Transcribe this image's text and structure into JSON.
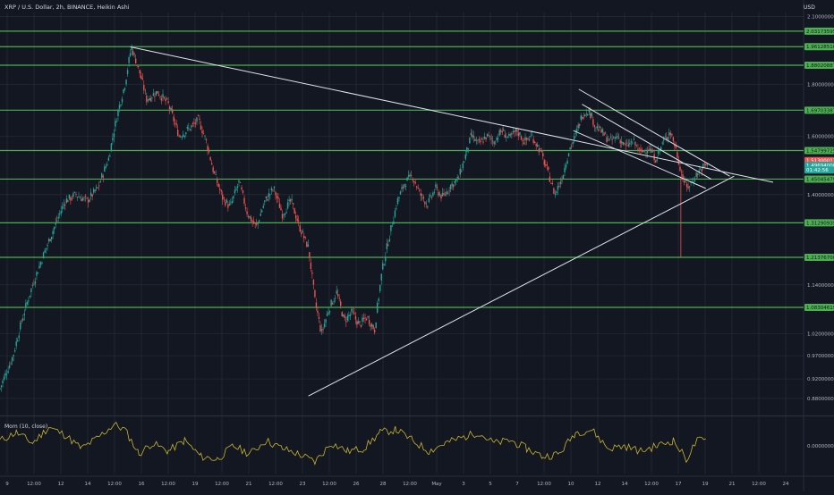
{
  "header": {
    "symbol_title": "XRP / U.S. Dollar, 2h, BINANCE, Heikin Ashi",
    "currency": "USD",
    "indicator_label": "Mom (10, close)"
  },
  "colors": {
    "background": "#131722",
    "grid": "#2a2e39",
    "up_candle": "#26a69a",
    "down_candle": "#ef5350",
    "level_line": "#4caf50",
    "trend_line": "#e0e3eb",
    "momentum_line": "#c9b531",
    "price_red": "#ef5350",
    "price_teal": "#26a69a"
  },
  "chart_data": {
    "type": "candlestick",
    "y_scale": "log",
    "ylim": [
      0.85,
      2.12
    ],
    "price_ticks": [
      "2.10000000",
      "1.80000000",
      "1.60000000",
      "1.40000000",
      "1.14000000",
      "1.02000000",
      "0.97000000",
      "0.92000000",
      "0.88000000"
    ],
    "x_ticks": [
      "9",
      "12:00",
      "12",
      "14",
      "12:00",
      "16",
      "12:00",
      "19",
      "12:00",
      "21",
      "12:00",
      "23",
      "12:00",
      "26",
      "28",
      "12:00",
      "May",
      "3",
      "5",
      "7",
      "12:00",
      "10",
      "12",
      "14",
      "12:00",
      "17",
      "19",
      "21",
      "12:00",
      "24"
    ],
    "levels": [
      {
        "label": "2.03173595",
        "value": 2.03173595
      },
      {
        "label": "1.96128516",
        "value": 1.96128516
      },
      {
        "label": "1.88020887",
        "value": 1.88020887
      },
      {
        "label": "1.69703387",
        "value": 1.69703387
      },
      {
        "label": "1.54799725",
        "value": 1.54799725
      },
      {
        "label": "1.45045479",
        "value": 1.45045479
      },
      {
        "label": "1.31290935",
        "value": 1.31290935
      },
      {
        "label": "1.21376700",
        "value": 1.213767
      },
      {
        "label": "1.08304619",
        "value": 1.08304619
      }
    ],
    "price_markers": [
      {
        "label": "1.51300013",
        "value": 1.51300013,
        "color": "red"
      },
      {
        "label": "1.49694000",
        "value": 1.49694,
        "color": "teal"
      },
      {
        "label": "01:42:56",
        "value": 1.481,
        "color": "teal"
      }
    ],
    "heikin_ashi_path": [
      {
        "t": 0,
        "close": 0.9
      },
      {
        "t": 12,
        "close": 0.97
      },
      {
        "t": 20,
        "close": 1.05
      },
      {
        "t": 30,
        "close": 1.14
      },
      {
        "t": 40,
        "close": 1.22
      },
      {
        "t": 50,
        "close": 1.3
      },
      {
        "t": 60,
        "close": 1.38
      },
      {
        "t": 70,
        "close": 1.4
      },
      {
        "t": 80,
        "close": 1.38
      },
      {
        "t": 90,
        "close": 1.42
      },
      {
        "t": 100,
        "close": 1.52
      },
      {
        "t": 108,
        "close": 1.68
      },
      {
        "t": 115,
        "close": 1.8
      },
      {
        "t": 121,
        "close": 1.96
      },
      {
        "t": 128,
        "close": 1.86
      },
      {
        "t": 135,
        "close": 1.74
      },
      {
        "t": 145,
        "close": 1.77
      },
      {
        "t": 155,
        "close": 1.72
      },
      {
        "t": 165,
        "close": 1.6
      },
      {
        "t": 175,
        "close": 1.63
      },
      {
        "t": 183,
        "close": 1.66
      },
      {
        "t": 190,
        "close": 1.58
      },
      {
        "t": 197,
        "close": 1.47
      },
      {
        "t": 205,
        "close": 1.39
      },
      {
        "t": 212,
        "close": 1.36
      },
      {
        "t": 220,
        "close": 1.44
      },
      {
        "t": 228,
        "close": 1.34
      },
      {
        "t": 236,
        "close": 1.3
      },
      {
        "t": 244,
        "close": 1.38
      },
      {
        "t": 252,
        "close": 1.42
      },
      {
        "t": 260,
        "close": 1.34
      },
      {
        "t": 268,
        "close": 1.38
      },
      {
        "t": 276,
        "close": 1.3
      },
      {
        "t": 284,
        "close": 1.24
      },
      {
        "t": 290,
        "close": 1.1
      },
      {
        "t": 296,
        "close": 1.02
      },
      {
        "t": 303,
        "close": 1.08
      },
      {
        "t": 310,
        "close": 1.12
      },
      {
        "t": 317,
        "close": 1.05
      },
      {
        "t": 324,
        "close": 1.07
      },
      {
        "t": 331,
        "close": 1.04
      },
      {
        "t": 338,
        "close": 1.06
      },
      {
        "t": 345,
        "close": 1.03
      },
      {
        "t": 352,
        "close": 1.18
      },
      {
        "t": 359,
        "close": 1.28
      },
      {
        "t": 366,
        "close": 1.38
      },
      {
        "t": 373,
        "close": 1.44
      },
      {
        "t": 380,
        "close": 1.46
      },
      {
        "t": 387,
        "close": 1.4
      },
      {
        "t": 394,
        "close": 1.37
      },
      {
        "t": 401,
        "close": 1.42
      },
      {
        "t": 408,
        "close": 1.39
      },
      {
        "t": 415,
        "close": 1.43
      },
      {
        "t": 422,
        "close": 1.45
      },
      {
        "t": 428,
        "close": 1.52
      },
      {
        "t": 434,
        "close": 1.6
      },
      {
        "t": 441,
        "close": 1.57
      },
      {
        "t": 448,
        "close": 1.6
      },
      {
        "t": 455,
        "close": 1.58
      },
      {
        "t": 462,
        "close": 1.62
      },
      {
        "t": 469,
        "close": 1.59
      },
      {
        "t": 476,
        "close": 1.62
      },
      {
        "t": 483,
        "close": 1.58
      },
      {
        "t": 490,
        "close": 1.6
      },
      {
        "t": 497,
        "close": 1.55
      },
      {
        "t": 504,
        "close": 1.48
      },
      {
        "t": 511,
        "close": 1.4
      },
      {
        "t": 518,
        "close": 1.46
      },
      {
        "t": 524,
        "close": 1.55
      },
      {
        "t": 530,
        "close": 1.6
      },
      {
        "t": 536,
        "close": 1.68
      },
      {
        "t": 542,
        "close": 1.7
      },
      {
        "t": 548,
        "close": 1.64
      },
      {
        "t": 555,
        "close": 1.61
      },
      {
        "t": 562,
        "close": 1.58
      },
      {
        "t": 569,
        "close": 1.6
      },
      {
        "t": 576,
        "close": 1.56
      },
      {
        "t": 583,
        "close": 1.58
      },
      {
        "t": 590,
        "close": 1.54
      },
      {
        "t": 597,
        "close": 1.56
      },
      {
        "t": 604,
        "close": 1.52
      },
      {
        "t": 611,
        "close": 1.58
      },
      {
        "t": 617,
        "close": 1.62
      },
      {
        "t": 622,
        "close": 1.56
      },
      {
        "t": 627,
        "close": 1.48
      },
      {
        "t": 632,
        "close": 1.42
      },
      {
        "t": 637,
        "close": 1.44
      },
      {
        "t": 642,
        "close": 1.47
      },
      {
        "t": 647,
        "close": 1.49
      },
      {
        "t": 652,
        "close": 1.5
      }
    ],
    "momentum_path": [
      {
        "t": 0,
        "mom": 0.02
      },
      {
        "t": 15,
        "mom": 0.05
      },
      {
        "t": 30,
        "mom": 0.01
      },
      {
        "t": 45,
        "mom": 0.07
      },
      {
        "t": 60,
        "mom": 0.04
      },
      {
        "t": 75,
        "mom": -0.01
      },
      {
        "t": 90,
        "mom": 0.03
      },
      {
        "t": 105,
        "mom": 0.08
      },
      {
        "t": 115,
        "mom": 0.06
      },
      {
        "t": 128,
        "mom": -0.03
      },
      {
        "t": 140,
        "mom": 0.01
      },
      {
        "t": 155,
        "mom": -0.02
      },
      {
        "t": 170,
        "mom": 0.02
      },
      {
        "t": 185,
        "mom": -0.04
      },
      {
        "t": 200,
        "mom": -0.05
      },
      {
        "t": 215,
        "mom": 0.0
      },
      {
        "t": 230,
        "mom": -0.03
      },
      {
        "t": 245,
        "mom": 0.02
      },
      {
        "t": 260,
        "mom": -0.01
      },
      {
        "t": 275,
        "mom": -0.03
      },
      {
        "t": 290,
        "mom": -0.06
      },
      {
        "t": 305,
        "mom": 0.01
      },
      {
        "t": 320,
        "mom": -0.02
      },
      {
        "t": 335,
        "mom": -0.01
      },
      {
        "t": 350,
        "mom": 0.05
      },
      {
        "t": 365,
        "mom": 0.06
      },
      {
        "t": 380,
        "mom": 0.02
      },
      {
        "t": 395,
        "mom": -0.02
      },
      {
        "t": 410,
        "mom": 0.01
      },
      {
        "t": 425,
        "mom": 0.03
      },
      {
        "t": 440,
        "mom": 0.05
      },
      {
        "t": 455,
        "mom": 0.01
      },
      {
        "t": 470,
        "mom": 0.02
      },
      {
        "t": 485,
        "mom": -0.01
      },
      {
        "t": 500,
        "mom": -0.04
      },
      {
        "t": 515,
        "mom": -0.03
      },
      {
        "t": 530,
        "mom": 0.05
      },
      {
        "t": 545,
        "mom": 0.06
      },
      {
        "t": 560,
        "mom": -0.01
      },
      {
        "t": 575,
        "mom": 0.0
      },
      {
        "t": 590,
        "mom": -0.02
      },
      {
        "t": 605,
        "mom": 0.0
      },
      {
        "t": 620,
        "mom": 0.02
      },
      {
        "t": 632,
        "mom": -0.05
      },
      {
        "t": 642,
        "mom": 0.02
      },
      {
        "t": 652,
        "mom": 0.02
      }
    ],
    "momentum_ticks": [
      "0.00000000"
    ],
    "trendlines": [
      {
        "name": "descending-trendline",
        "from": {
          "t": 120,
          "price": 1.96
        },
        "to": {
          "t": 712,
          "price": 1.44
        }
      },
      {
        "name": "ascending-trendline",
        "from": {
          "t": 284,
          "price": 0.885
        },
        "to": {
          "t": 676,
          "price": 1.46
        }
      },
      {
        "name": "falling-wedge-upper",
        "from": {
          "t": 533,
          "price": 1.78
        },
        "to": {
          "t": 672,
          "price": 1.46
        }
      },
      {
        "name": "falling-wedge-middle",
        "from": {
          "t": 536,
          "price": 1.72
        },
        "to": {
          "t": 655,
          "price": 1.45
        }
      },
      {
        "name": "falling-wedge-lower",
        "from": {
          "t": 528,
          "price": 1.62
        },
        "to": {
          "t": 650,
          "price": 1.42
        }
      }
    ]
  }
}
